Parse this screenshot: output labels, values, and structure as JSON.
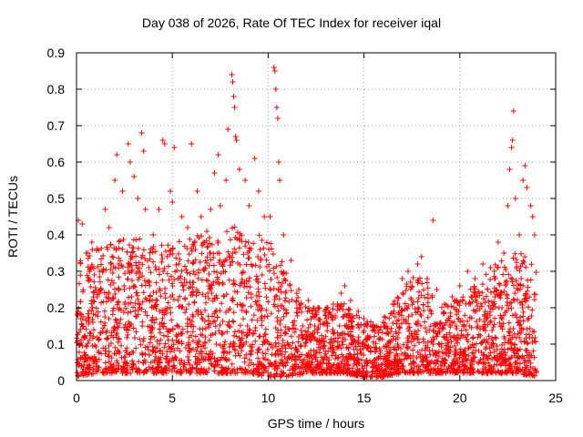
{
  "chart_data": {
    "type": "scatter",
    "title": "Day 038 of 2026, Rate Of TEC Index for receiver iqal",
    "xlabel": "GPS time / hours",
    "ylabel": "ROTI / TECUs",
    "xlim": [
      0,
      25
    ],
    "ylim": [
      0,
      0.9
    ],
    "xticks": [
      0,
      5,
      10,
      15,
      20,
      25
    ],
    "xtick_labels": [
      "0",
      "5",
      "10",
      "15",
      "20",
      "25"
    ],
    "yticks": [
      0,
      0.1,
      0.2,
      0.3,
      0.4,
      0.5,
      0.6,
      0.7,
      0.8,
      0.9
    ],
    "ytick_labels": [
      "0",
      "0.1",
      "0.2",
      "0.3",
      "0.4",
      "0.5",
      "0.6",
      "0.7",
      "0.8",
      "0.9"
    ],
    "grid": true,
    "marker": "+",
    "color": "#ff0000",
    "series": [
      {
        "name": "ROTI",
        "points": [
          [
            0.1,
            0.44
          ],
          [
            0.3,
            0.43
          ],
          [
            0.5,
            0.35
          ],
          [
            0.8,
            0.38
          ],
          [
            1.2,
            0.3
          ],
          [
            1.5,
            0.47
          ],
          [
            1.7,
            0.42
          ],
          [
            2.0,
            0.55
          ],
          [
            2.1,
            0.62
          ],
          [
            2.4,
            0.52
          ],
          [
            2.7,
            0.65
          ],
          [
            2.8,
            0.6
          ],
          [
            3.0,
            0.56
          ],
          [
            3.2,
            0.5
          ],
          [
            3.4,
            0.68
          ],
          [
            3.5,
            0.63
          ],
          [
            3.6,
            0.47
          ],
          [
            4.0,
            0.4
          ],
          [
            4.3,
            0.47
          ],
          [
            4.5,
            0.66
          ],
          [
            4.6,
            0.65
          ],
          [
            4.9,
            0.52
          ],
          [
            5.0,
            0.49
          ],
          [
            5.1,
            0.64
          ],
          [
            5.5,
            0.45
          ],
          [
            5.8,
            0.42
          ],
          [
            6.0,
            0.65
          ],
          [
            6.3,
            0.52
          ],
          [
            6.5,
            0.45
          ],
          [
            6.8,
            0.41
          ],
          [
            7.0,
            0.47
          ],
          [
            7.2,
            0.57
          ],
          [
            7.4,
            0.62
          ],
          [
            7.5,
            0.48
          ],
          [
            7.8,
            0.55
          ],
          [
            7.9,
            0.69
          ],
          [
            8.1,
            0.84
          ],
          [
            8.15,
            0.82
          ],
          [
            8.2,
            0.78
          ],
          [
            8.25,
            0.75
          ],
          [
            8.3,
            0.67
          ],
          [
            8.35,
            0.66
          ],
          [
            8.5,
            0.58
          ],
          [
            8.8,
            0.55
          ],
          [
            9.0,
            0.48
          ],
          [
            9.3,
            0.61
          ],
          [
            9.5,
            0.52
          ],
          [
            9.8,
            0.45
          ],
          [
            10.1,
            0.45
          ],
          [
            10.3,
            0.86
          ],
          [
            10.35,
            0.85
          ],
          [
            10.4,
            0.8
          ],
          [
            10.45,
            0.75
          ],
          [
            10.5,
            0.72
          ],
          [
            10.55,
            0.6
          ],
          [
            10.6,
            0.55
          ],
          [
            10.8,
            0.4
          ],
          [
            11.2,
            0.33
          ],
          [
            11.6,
            0.25
          ],
          [
            12.1,
            0.22
          ],
          [
            12.6,
            0.2
          ],
          [
            13.0,
            0.18
          ],
          [
            13.4,
            0.21
          ],
          [
            13.8,
            0.24
          ],
          [
            14.0,
            0.26
          ],
          [
            14.3,
            0.22
          ],
          [
            14.7,
            0.19
          ],
          [
            15.0,
            0.17
          ],
          [
            15.5,
            0.14
          ],
          [
            16.0,
            0.16
          ],
          [
            16.5,
            0.21
          ],
          [
            17.0,
            0.28
          ],
          [
            17.3,
            0.3
          ],
          [
            17.8,
            0.32
          ],
          [
            18.0,
            0.34
          ],
          [
            18.3,
            0.28
          ],
          [
            18.6,
            0.44
          ],
          [
            18.8,
            0.25
          ],
          [
            19.2,
            0.21
          ],
          [
            19.6,
            0.23
          ],
          [
            20.0,
            0.26
          ],
          [
            20.4,
            0.3
          ],
          [
            20.8,
            0.28
          ],
          [
            21.2,
            0.32
          ],
          [
            21.6,
            0.31
          ],
          [
            22.0,
            0.38
          ],
          [
            22.3,
            0.35
          ],
          [
            22.5,
            0.48
          ],
          [
            22.6,
            0.58
          ],
          [
            22.7,
            0.64
          ],
          [
            22.75,
            0.66
          ],
          [
            22.8,
            0.74
          ],
          [
            22.9,
            0.5
          ],
          [
            23.1,
            0.4
          ],
          [
            23.3,
            0.55
          ],
          [
            23.4,
            0.59
          ],
          [
            23.5,
            0.53
          ],
          [
            23.7,
            0.48
          ],
          [
            23.8,
            0.45
          ],
          [
            23.9,
            0.4
          ],
          [
            0.4,
            0.12
          ],
          [
            1.0,
            0.18
          ],
          [
            1.8,
            0.22
          ],
          [
            2.5,
            0.25
          ],
          [
            3.3,
            0.2
          ],
          [
            4.2,
            0.22
          ],
          [
            5.3,
            0.28
          ],
          [
            6.1,
            0.3
          ],
          [
            6.9,
            0.26
          ],
          [
            7.6,
            0.32
          ],
          [
            8.7,
            0.3
          ],
          [
            9.6,
            0.33
          ],
          [
            10.9,
            0.24
          ],
          [
            11.8,
            0.15
          ],
          [
            12.8,
            0.11
          ],
          [
            13.9,
            0.13
          ],
          [
            15.2,
            0.09
          ],
          [
            16.2,
            0.08
          ],
          [
            17.5,
            0.18
          ],
          [
            18.5,
            0.19
          ],
          [
            19.5,
            0.12
          ],
          [
            20.5,
            0.15
          ],
          [
            21.4,
            0.17
          ],
          [
            22.2,
            0.2
          ],
          [
            23.2,
            0.28
          ],
          [
            0.7,
            0.06
          ],
          [
            2.2,
            0.08
          ],
          [
            3.8,
            0.07
          ],
          [
            5.7,
            0.09
          ],
          [
            7.3,
            0.1
          ],
          [
            9.1,
            0.08
          ],
          [
            11.0,
            0.06
          ],
          [
            12.3,
            0.05
          ],
          [
            13.5,
            0.06
          ],
          [
            14.9,
            0.04
          ],
          [
            16.8,
            0.05
          ],
          [
            18.2,
            0.07
          ],
          [
            19.8,
            0.06
          ],
          [
            21.8,
            0.08
          ],
          [
            23.6,
            0.07
          ]
        ]
      }
    ],
    "density_band": {
      "x": [
        0,
        1,
        2,
        3,
        4,
        5,
        6,
        7,
        8,
        9,
        10,
        11,
        12,
        13,
        14,
        15,
        16,
        17,
        18,
        19,
        20,
        21,
        22,
        23,
        24
      ],
      "y_low": [
        0.01,
        0.02,
        0.02,
        0.02,
        0.02,
        0.02,
        0.02,
        0.02,
        0.02,
        0.02,
        0.01,
        0.01,
        0.02,
        0.02,
        0.02,
        0.01,
        0.01,
        0.02,
        0.02,
        0.02,
        0.02,
        0.02,
        0.02,
        0.02,
        0.01
      ],
      "y_high": [
        0.36,
        0.36,
        0.4,
        0.4,
        0.37,
        0.38,
        0.4,
        0.4,
        0.43,
        0.4,
        0.4,
        0.3,
        0.2,
        0.2,
        0.22,
        0.16,
        0.17,
        0.26,
        0.3,
        0.2,
        0.23,
        0.27,
        0.33,
        0.36,
        0.33
      ]
    }
  }
}
